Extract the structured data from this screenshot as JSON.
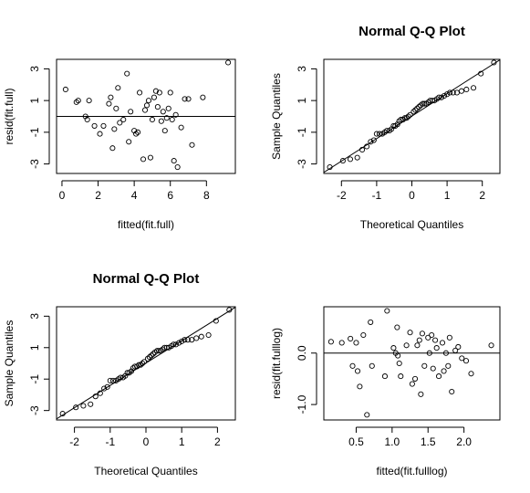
{
  "chart_data": [
    {
      "type": "scatter",
      "title": "",
      "xlabel": "fitted(fit.full)",
      "ylabel": "resid(fit.full)",
      "xlim": [
        -0.3,
        9.6
      ],
      "ylim": [
        -3.6,
        3.6
      ],
      "xticks": [
        0,
        2,
        4,
        6,
        8
      ],
      "xtick_labels": [
        "0",
        "2",
        "4",
        "6",
        "8"
      ],
      "yticks": [
        -3,
        -1,
        1,
        3
      ],
      "ytick_labels": [
        "-3",
        "-1",
        "1",
        "3"
      ],
      "hlines": [
        0
      ],
      "points": {
        "x": [
          0.2,
          0.8,
          0.9,
          1.3,
          1.4,
          1.5,
          1.8,
          2.1,
          2.3,
          2.6,
          2.7,
          2.8,
          2.9,
          3.0,
          3.1,
          3.2,
          3.4,
          3.6,
          3.7,
          3.8,
          4.0,
          4.1,
          4.2,
          4.3,
          4.5,
          4.6,
          4.7,
          4.8,
          4.9,
          5.0,
          5.1,
          5.2,
          5.3,
          5.4,
          5.5,
          5.6,
          5.7,
          5.8,
          5.9,
          6.0,
          6.1,
          6.2,
          6.3,
          6.4,
          6.6,
          6.8,
          7.0,
          7.2,
          7.8,
          9.2
        ],
        "y": [
          1.7,
          0.9,
          1.0,
          0.0,
          -0.2,
          1.0,
          -0.6,
          -1.1,
          -0.6,
          0.8,
          1.2,
          -2.0,
          -0.8,
          0.5,
          1.8,
          -0.4,
          -0.2,
          2.7,
          -1.6,
          0.3,
          -0.9,
          -1.1,
          -1.0,
          1.5,
          -2.7,
          0.4,
          0.7,
          1.0,
          -2.6,
          -0.2,
          1.2,
          1.6,
          0.6,
          1.5,
          -0.3,
          0.3,
          -0.9,
          -0.1,
          0.5,
          1.5,
          -0.2,
          -2.8,
          0.1,
          -3.2,
          -0.7,
          1.1,
          1.1,
          -1.8,
          1.2,
          3.4
        ]
      }
    },
    {
      "type": "scatter",
      "title": "Normal Q-Q Plot",
      "xlabel": "Theoretical Quantiles",
      "ylabel": "Sample Quantiles",
      "xlim": [
        -2.5,
        2.5
      ],
      "ylim": [
        -3.6,
        3.6
      ],
      "xticks": [
        -2,
        -1,
        0,
        1,
        2
      ],
      "xtick_labels": [
        "-2",
        "-1",
        "0",
        "1",
        "2"
      ],
      "yticks": [
        -3,
        -1,
        1,
        3
      ],
      "ytick_labels": [
        "-3",
        "-1",
        "1",
        "3"
      ],
      "reference_line": {
        "intercept": 0.02,
        "slope": 1.42
      },
      "points": {
        "x": [
          -2.33,
          -1.96,
          -1.75,
          -1.55,
          -1.41,
          -1.28,
          -1.17,
          -1.08,
          -1.0,
          -0.92,
          -0.84,
          -0.77,
          -0.71,
          -0.64,
          -0.58,
          -0.52,
          -0.47,
          -0.41,
          -0.36,
          -0.31,
          -0.25,
          -0.2,
          -0.15,
          -0.1,
          -0.05,
          0.05,
          0.1,
          0.15,
          0.2,
          0.25,
          0.31,
          0.36,
          0.41,
          0.47,
          0.52,
          0.58,
          0.64,
          0.71,
          0.77,
          0.84,
          0.92,
          1.0,
          1.08,
          1.17,
          1.28,
          1.41,
          1.55,
          1.75,
          1.96,
          2.33
        ],
        "y": [
          -3.2,
          -2.8,
          -2.7,
          -2.6,
          -2.1,
          -1.9,
          -1.6,
          -1.5,
          -1.1,
          -1.1,
          -1.1,
          -1.0,
          -0.9,
          -0.9,
          -0.8,
          -0.6,
          -0.6,
          -0.5,
          -0.3,
          -0.2,
          -0.2,
          -0.1,
          -0.1,
          0.0,
          0.1,
          0.3,
          0.4,
          0.5,
          0.6,
          0.7,
          0.8,
          0.8,
          0.8,
          0.9,
          1.0,
          1.0,
          1.0,
          1.1,
          1.2,
          1.2,
          1.3,
          1.4,
          1.5,
          1.5,
          1.5,
          1.6,
          1.7,
          1.8,
          2.7,
          3.4
        ]
      }
    },
    {
      "type": "scatter",
      "title": "Normal Q-Q Plot",
      "xlabel": "Theoretical Quantiles",
      "ylabel": "Sample Quantiles",
      "xlim": [
        -2.5,
        2.5
      ],
      "ylim": [
        -3.6,
        3.6
      ],
      "xticks": [
        -2,
        -1,
        0,
        1,
        2
      ],
      "xtick_labels": [
        "-2",
        "-1",
        "0",
        "1",
        "2"
      ],
      "yticks": [
        -3,
        -1,
        1,
        3
      ],
      "ytick_labels": [
        "-3",
        "-1",
        "1",
        "3"
      ],
      "reference_line": {
        "intercept": 0.02,
        "slope": 1.42
      },
      "points": {
        "x": [
          -2.33,
          -1.96,
          -1.75,
          -1.55,
          -1.41,
          -1.28,
          -1.17,
          -1.08,
          -1.0,
          -0.92,
          -0.84,
          -0.77,
          -0.71,
          -0.64,
          -0.58,
          -0.52,
          -0.47,
          -0.41,
          -0.36,
          -0.31,
          -0.25,
          -0.2,
          -0.15,
          -0.1,
          -0.05,
          0.05,
          0.1,
          0.15,
          0.2,
          0.25,
          0.31,
          0.36,
          0.41,
          0.47,
          0.52,
          0.58,
          0.64,
          0.71,
          0.77,
          0.84,
          0.92,
          1.0,
          1.08,
          1.17,
          1.28,
          1.41,
          1.55,
          1.75,
          1.96,
          2.33
        ],
        "y": [
          -3.2,
          -2.8,
          -2.7,
          -2.6,
          -2.1,
          -1.9,
          -1.6,
          -1.5,
          -1.1,
          -1.1,
          -1.1,
          -1.0,
          -0.9,
          -0.9,
          -0.8,
          -0.6,
          -0.6,
          -0.5,
          -0.3,
          -0.2,
          -0.2,
          -0.1,
          -0.1,
          0.0,
          0.1,
          0.3,
          0.4,
          0.5,
          0.6,
          0.7,
          0.8,
          0.8,
          0.8,
          0.9,
          1.0,
          1.0,
          1.0,
          1.1,
          1.2,
          1.2,
          1.3,
          1.4,
          1.5,
          1.5,
          1.5,
          1.6,
          1.7,
          1.8,
          2.7,
          3.4
        ]
      }
    },
    {
      "type": "scatter",
      "title": "",
      "xlabel": "fitted(fit.fulllog)",
      "ylabel": "resid(fit.fulllog)",
      "xlim": [
        0.05,
        2.5
      ],
      "ylim": [
        -1.3,
        0.9
      ],
      "xticks": [
        0.5,
        1.0,
        1.5,
        2.0
      ],
      "xtick_labels": [
        "0.5",
        "1.0",
        "1.5",
        "2.0"
      ],
      "yticks": [
        -1.0,
        0.0
      ],
      "ytick_labels": [
        "-1.0",
        "0.0"
      ],
      "hlines": [
        0
      ],
      "points": {
        "x": [
          0.15,
          0.3,
          0.42,
          0.45,
          0.5,
          0.52,
          0.55,
          0.6,
          0.65,
          0.7,
          0.72,
          0.9,
          0.93,
          1.02,
          1.05,
          1.07,
          1.08,
          1.1,
          1.12,
          1.2,
          1.25,
          1.28,
          1.32,
          1.35,
          1.38,
          1.4,
          1.42,
          1.45,
          1.5,
          1.52,
          1.55,
          1.57,
          1.6,
          1.62,
          1.65,
          1.7,
          1.72,
          1.75,
          1.78,
          1.8,
          1.83,
          1.88,
          1.92,
          1.97,
          2.03,
          2.1,
          2.38
        ],
        "y": [
          0.22,
          0.2,
          0.28,
          -0.25,
          0.2,
          -0.35,
          -0.65,
          0.35,
          -1.2,
          0.6,
          -0.25,
          -0.45,
          0.82,
          0.1,
          0.0,
          0.5,
          -0.05,
          -0.2,
          -0.45,
          0.15,
          0.4,
          -0.6,
          -0.5,
          0.15,
          0.25,
          -0.8,
          0.38,
          -0.25,
          0.3,
          0.0,
          0.35,
          -0.3,
          0.25,
          0.1,
          -0.45,
          0.2,
          -0.35,
          0.0,
          -0.25,
          0.3,
          -0.75,
          0.05,
          0.12,
          -0.1,
          -0.15,
          -0.4,
          0.15
        ]
      }
    }
  ]
}
